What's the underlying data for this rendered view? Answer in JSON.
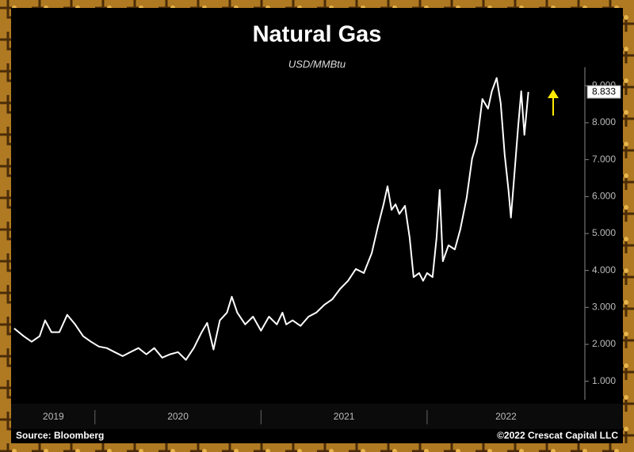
{
  "chart_data": {
    "type": "line",
    "title": "Natural Gas",
    "subtitle": "USD/MMBtu",
    "source": "Source: Bloomberg",
    "credit": "©2022 Crescat Capital LLC",
    "x": [
      2019.514,
      2019.571,
      2019.619,
      2019.667,
      2019.7,
      2019.738,
      2019.786,
      2019.833,
      2019.881,
      2019.929,
      2019.976,
      2020.024,
      2020.071,
      2020.119,
      2020.167,
      2020.214,
      2020.262,
      2020.31,
      2020.357,
      2020.405,
      2020.452,
      2020.5,
      2020.548,
      2020.595,
      2020.643,
      2020.676,
      2020.714,
      2020.752,
      2020.795,
      2020.824,
      2020.857,
      2020.905,
      2020.952,
      2021.0,
      2021.048,
      2021.095,
      2021.129,
      2021.152,
      2021.19,
      2021.238,
      2021.286,
      2021.333,
      2021.381,
      2021.429,
      2021.476,
      2021.524,
      2021.571,
      2021.619,
      2021.667,
      2021.705,
      2021.738,
      2021.762,
      2021.786,
      2021.81,
      2021.833,
      2021.867,
      2021.895,
      2021.919,
      2021.952,
      2021.976,
      2022.0,
      2022.033,
      2022.057,
      2022.076,
      2022.095,
      2022.129,
      2022.167,
      2022.2,
      2022.238,
      2022.271,
      2022.3,
      2022.333,
      2022.367,
      2022.39,
      2022.419,
      2022.443,
      2022.467,
      2022.49,
      2022.505,
      2022.524,
      2022.548,
      2022.567,
      2022.586,
      2022.61
    ],
    "series": [
      {
        "name": "Natural Gas",
        "color": "#ffffff",
        "values": [
          2.43,
          2.22,
          2.07,
          2.22,
          2.65,
          2.33,
          2.33,
          2.8,
          2.54,
          2.22,
          2.07,
          1.94,
          1.9,
          1.79,
          1.68,
          1.79,
          1.9,
          1.73,
          1.9,
          1.64,
          1.73,
          1.79,
          1.58,
          1.9,
          2.33,
          2.58,
          1.86,
          2.65,
          2.86,
          3.29,
          2.86,
          2.54,
          2.75,
          2.37,
          2.75,
          2.54,
          2.86,
          2.54,
          2.65,
          2.5,
          2.75,
          2.86,
          3.07,
          3.22,
          3.5,
          3.72,
          4.04,
          3.93,
          4.47,
          5.21,
          5.79,
          6.28,
          5.64,
          5.79,
          5.53,
          5.75,
          4.89,
          3.82,
          3.93,
          3.72,
          3.93,
          3.82,
          4.89,
          6.18,
          4.25,
          4.68,
          4.57,
          5.11,
          5.96,
          7.03,
          7.46,
          8.64,
          8.38,
          8.85,
          9.21,
          8.53,
          7.14,
          6.18,
          5.43,
          6.5,
          7.89,
          8.85,
          7.67,
          8.833
        ]
      }
    ],
    "last_value_label": "8.833",
    "xlim": [
      2019.5,
      2022.95
    ],
    "xticks": [
      2020,
      2021,
      2022
    ],
    "year_labels": [
      2019,
      2020,
      2021,
      2022
    ],
    "ylim": [
      0.5,
      9.5
    ],
    "yticks": [
      {
        "value": 1,
        "label": "1.000"
      },
      {
        "value": 2,
        "label": "2.000"
      },
      {
        "value": 3,
        "label": "3.000"
      },
      {
        "value": 4,
        "label": "4.000"
      },
      {
        "value": 5,
        "label": "5.000"
      },
      {
        "value": 6,
        "label": "6.000"
      },
      {
        "value": 7,
        "label": "7.000"
      },
      {
        "value": 8,
        "label": "8.000"
      },
      {
        "value": 9,
        "label": "9.000"
      }
    ]
  }
}
